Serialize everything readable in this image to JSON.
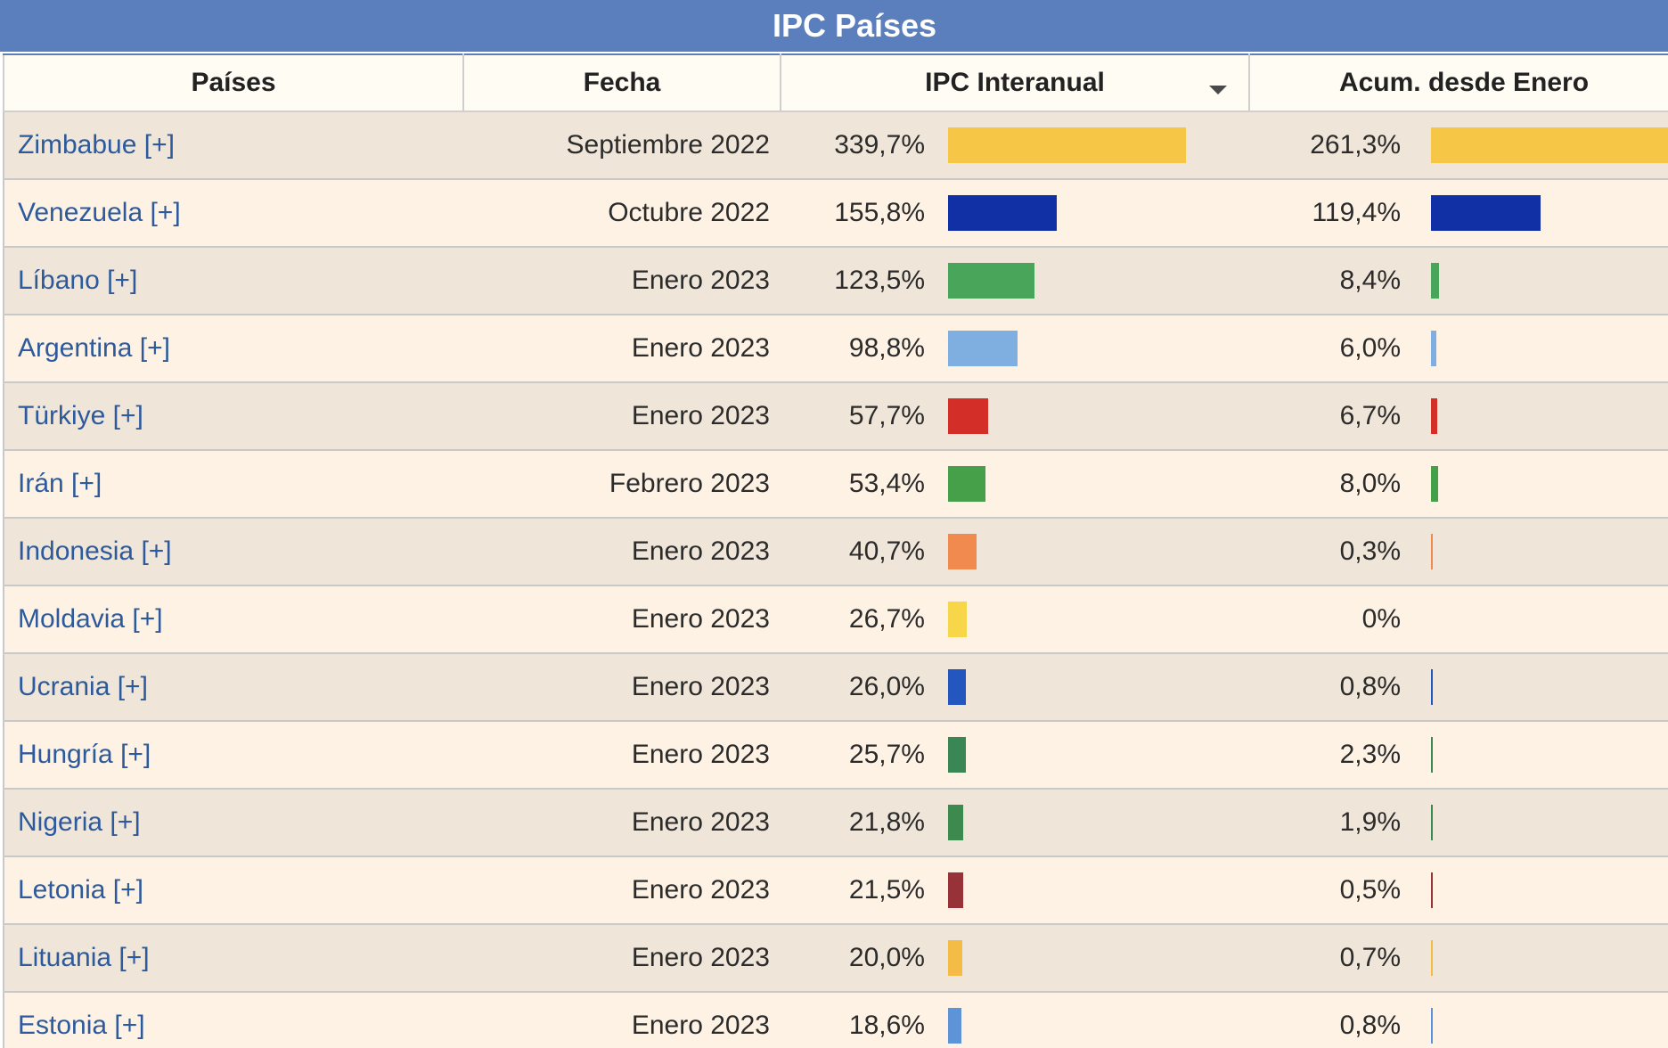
{
  "title": "IPC Países",
  "headers": {
    "pais": "Países",
    "fecha": "Fecha",
    "ipc": "IPC Interanual",
    "acum": "Acum. desde Enero"
  },
  "sort_icon": "sort-descending-icon",
  "rows": [
    {
      "pais": "Zimbabue [+]",
      "fecha": "Septiembre 2022",
      "ipc_label": "339,7%",
      "ipc": 339.7,
      "acum_label": "261,3%",
      "acum": 261.3,
      "color": "#f6c646"
    },
    {
      "pais": "Venezuela [+]",
      "fecha": "Octubre 2022",
      "ipc_label": "155,8%",
      "ipc": 155.8,
      "acum_label": "119,4%",
      "acum": 119.4,
      "color": "#1230a6"
    },
    {
      "pais": "Líbano [+]",
      "fecha": "Enero 2023",
      "ipc_label": "123,5%",
      "ipc": 123.5,
      "acum_label": "8,4%",
      "acum": 8.4,
      "color": "#48a55a"
    },
    {
      "pais": "Argentina [+]",
      "fecha": "Enero 2023",
      "ipc_label": "98,8%",
      "ipc": 98.8,
      "acum_label": "6,0%",
      "acum": 6.0,
      "color": "#7faee0"
    },
    {
      "pais": "Türkiye [+]",
      "fecha": "Enero 2023",
      "ipc_label": "57,7%",
      "ipc": 57.7,
      "acum_label": "6,7%",
      "acum": 6.7,
      "color": "#d42e28"
    },
    {
      "pais": "Irán [+]",
      "fecha": "Febrero 2023",
      "ipc_label": "53,4%",
      "ipc": 53.4,
      "acum_label": "8,0%",
      "acum": 8.0,
      "color": "#46a04a"
    },
    {
      "pais": "Indonesia [+]",
      "fecha": "Enero 2023",
      "ipc_label": "40,7%",
      "ipc": 40.7,
      "acum_label": "0,3%",
      "acum": 0.3,
      "color": "#f08a4e"
    },
    {
      "pais": "Moldavia [+]",
      "fecha": "Enero 2023",
      "ipc_label": "26,7%",
      "ipc": 26.7,
      "acum_label": "0%",
      "acum": 0,
      "color": "#f7d64a"
    },
    {
      "pais": "Ucrania [+]",
      "fecha": "Enero 2023",
      "ipc_label": "26,0%",
      "ipc": 26.0,
      "acum_label": "0,8%",
      "acum": 0.8,
      "color": "#2456bf"
    },
    {
      "pais": "Hungría [+]",
      "fecha": "Enero 2023",
      "ipc_label": "25,7%",
      "ipc": 25.7,
      "acum_label": "2,3%",
      "acum": 2.3,
      "color": "#3a8655"
    },
    {
      "pais": "Nigeria [+]",
      "fecha": "Enero 2023",
      "ipc_label": "21,8%",
      "ipc": 21.8,
      "acum_label": "1,9%",
      "acum": 1.9,
      "color": "#3d8a4f"
    },
    {
      "pais": "Letonia [+]",
      "fecha": "Enero 2023",
      "ipc_label": "21,5%",
      "ipc": 21.5,
      "acum_label": "0,5%",
      "acum": 0.5,
      "color": "#963238"
    },
    {
      "pais": "Lituania [+]",
      "fecha": "Enero 2023",
      "ipc_label": "20,0%",
      "ipc": 20.0,
      "acum_label": "0,7%",
      "acum": 0.7,
      "color": "#f5bc45"
    },
    {
      "pais": "Estonia [+]",
      "fecha": "Enero 2023",
      "ipc_label": "18,6%",
      "ipc": 18.6,
      "acum_label": "0,8%",
      "acum": 0.8,
      "color": "#5d94d8"
    }
  ]
}
